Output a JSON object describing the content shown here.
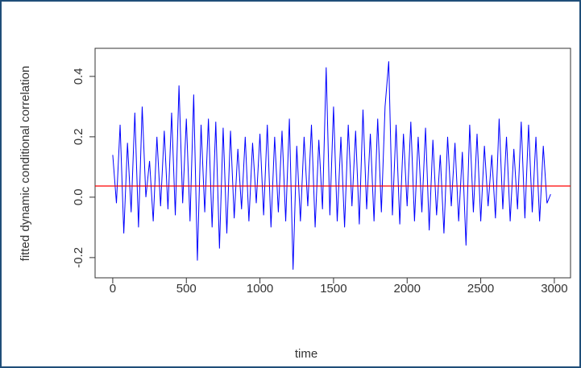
{
  "chart_data": {
    "type": "line",
    "xlabel": "time",
    "ylabel": "fitted dynamic conditional correlation",
    "x": [
      0,
      25,
      50,
      75,
      100,
      125,
      150,
      175,
      200,
      225,
      250,
      275,
      300,
      325,
      350,
      375,
      400,
      425,
      450,
      475,
      500,
      525,
      550,
      575,
      600,
      625,
      650,
      675,
      700,
      725,
      750,
      775,
      800,
      825,
      850,
      875,
      900,
      925,
      950,
      975,
      1000,
      1025,
      1050,
      1075,
      1100,
      1125,
      1150,
      1175,
      1200,
      1225,
      1250,
      1275,
      1300,
      1325,
      1350,
      1375,
      1400,
      1425,
      1450,
      1475,
      1500,
      1525,
      1550,
      1575,
      1600,
      1625,
      1650,
      1675,
      1700,
      1725,
      1750,
      1775,
      1800,
      1825,
      1850,
      1875,
      1900,
      1925,
      1950,
      1975,
      2000,
      2025,
      2050,
      2075,
      2100,
      2125,
      2150,
      2175,
      2200,
      2225,
      2250,
      2275,
      2300,
      2325,
      2350,
      2375,
      2400,
      2425,
      2450,
      2475,
      2500,
      2525,
      2550,
      2575,
      2600,
      2625,
      2650,
      2675,
      2700,
      2725,
      2750,
      2775,
      2800,
      2825,
      2850,
      2875,
      2900,
      2925,
      2950,
      2975
    ],
    "values": [
      0.14,
      -0.02,
      0.24,
      -0.12,
      0.18,
      -0.05,
      0.28,
      -0.1,
      0.3,
      0.0,
      0.12,
      -0.08,
      0.2,
      -0.03,
      0.22,
      -0.04,
      0.28,
      -0.06,
      0.37,
      -0.02,
      0.26,
      -0.08,
      0.34,
      -0.21,
      0.24,
      -0.05,
      0.26,
      -0.1,
      0.25,
      -0.17,
      0.23,
      -0.12,
      0.22,
      -0.07,
      0.16,
      -0.04,
      0.2,
      -0.08,
      0.18,
      -0.02,
      0.21,
      -0.06,
      0.24,
      -0.1,
      0.2,
      -0.05,
      0.22,
      -0.08,
      0.26,
      -0.24,
      0.17,
      -0.08,
      0.2,
      -0.03,
      0.24,
      -0.1,
      0.19,
      -0.04,
      0.43,
      -0.06,
      0.3,
      -0.08,
      0.2,
      -0.1,
      0.24,
      -0.03,
      0.22,
      -0.09,
      0.29,
      -0.04,
      0.21,
      -0.08,
      0.26,
      -0.05,
      0.3,
      0.45,
      -0.06,
      0.24,
      -0.09,
      0.21,
      -0.03,
      0.25,
      -0.08,
      0.2,
      -0.05,
      0.23,
      -0.11,
      0.19,
      -0.06,
      0.14,
      -0.12,
      0.2,
      -0.03,
      0.18,
      -0.08,
      0.15,
      -0.16,
      0.24,
      -0.05,
      0.21,
      -0.08,
      0.17,
      -0.03,
      0.14,
      -0.07,
      0.26,
      -0.04,
      0.2,
      -0.08,
      0.16,
      -0.04,
      0.25,
      -0.07,
      0.24,
      -0.05,
      0.2,
      -0.08,
      0.17,
      -0.02,
      0.01
    ],
    "color": "#0000ff",
    "hline": {
      "value": 0.037,
      "color": "#ff0000"
    },
    "xlim": [
      -120,
      3110
    ],
    "xticks": [
      0,
      500,
      1000,
      1500,
      2000,
      2500,
      3000
    ],
    "ylim": [
      -0.267,
      0.493
    ],
    "yticks": [
      -0.2,
      {
        "value": 0,
        "label": "0.0"
      },
      0.2,
      0.4
    ]
  }
}
